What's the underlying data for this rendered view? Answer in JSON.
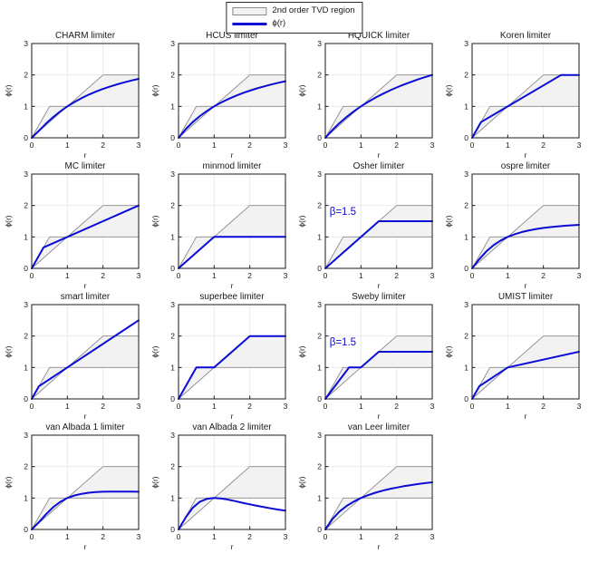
{
  "colors": {
    "curve": "#0b0bd6",
    "annotation": "#0b0bd6",
    "region_fill": "#f2f2f2",
    "region_edge": "#8a8a8a",
    "grid": "#ebebeb",
    "axis": "#1a1a1a",
    "background": "#ffffff"
  },
  "legend": {
    "items": [
      {
        "label": "2nd order TVD region",
        "swatch": "region-patch"
      },
      {
        "label": "ϕ(r)",
        "swatch": "blue-line"
      }
    ]
  },
  "chart_data": {
    "type": "line",
    "layout": "4x4-grid-15-subplots",
    "shared": {
      "xlabel": "r",
      "ylabel": "ϕ(r)",
      "xlim": [
        0,
        3
      ],
      "ylim": [
        0,
        3
      ],
      "xticks": [
        0,
        1,
        2,
        3
      ],
      "yticks": [
        0,
        1,
        2,
        3
      ],
      "grid_lines": {
        "x": [
          1,
          2
        ],
        "y": [
          1,
          2
        ]
      },
      "tvd_region_polygon": [
        [
          0,
          0
        ],
        [
          0.5,
          1
        ],
        [
          1,
          1
        ],
        [
          2,
          2
        ],
        [
          3,
          2
        ],
        [
          3,
          1
        ],
        [
          1,
          1
        ]
      ],
      "region_legend_label": "2nd order TVD region",
      "curve_legend_label": "ϕ(r)"
    },
    "subplots": [
      {
        "title": "CHARM limiter",
        "curve": [
          [
            0,
            0
          ],
          [
            0.2,
            0.222
          ],
          [
            0.4,
            0.449
          ],
          [
            0.6,
            0.656
          ],
          [
            0.8,
            0.84
          ],
          [
            1,
            1
          ],
          [
            1.2,
            1.14
          ],
          [
            1.4,
            1.264
          ],
          [
            1.6,
            1.373
          ],
          [
            1.8,
            1.469
          ],
          [
            2,
            1.556
          ],
          [
            2.2,
            1.633
          ],
          [
            2.4,
            1.702
          ],
          [
            2.6,
            1.765
          ],
          [
            2.8,
            1.823
          ],
          [
            3,
            1.875
          ]
        ]
      },
      {
        "title": "HCUS limiter",
        "curve": [
          [
            0,
            0
          ],
          [
            0.2,
            0.273
          ],
          [
            0.4,
            0.5
          ],
          [
            0.6,
            0.692
          ],
          [
            0.8,
            0.857
          ],
          [
            1,
            1
          ],
          [
            1.2,
            1.125
          ],
          [
            1.4,
            1.235
          ],
          [
            1.6,
            1.333
          ],
          [
            1.8,
            1.421
          ],
          [
            2,
            1.5
          ],
          [
            2.2,
            1.571
          ],
          [
            2.4,
            1.636
          ],
          [
            2.6,
            1.696
          ],
          [
            2.8,
            1.75
          ],
          [
            3,
            1.8
          ]
        ]
      },
      {
        "title": "HQUICK limiter",
        "curve": [
          [
            0,
            0
          ],
          [
            0.2,
            0.25
          ],
          [
            0.4,
            0.471
          ],
          [
            0.6,
            0.667
          ],
          [
            0.8,
            0.842
          ],
          [
            1,
            1
          ],
          [
            1.2,
            1.143
          ],
          [
            1.4,
            1.273
          ],
          [
            1.6,
            1.391
          ],
          [
            1.8,
            1.5
          ],
          [
            2,
            1.6
          ],
          [
            2.2,
            1.692
          ],
          [
            2.4,
            1.778
          ],
          [
            2.6,
            1.857
          ],
          [
            2.8,
            1.931
          ],
          [
            3,
            2
          ]
        ]
      },
      {
        "title": "Koren limiter",
        "curve": [
          [
            0,
            0
          ],
          [
            0.25,
            0.5
          ],
          [
            2.5,
            2
          ],
          [
            3,
            2
          ]
        ]
      },
      {
        "title": "MC limiter",
        "curve": [
          [
            0,
            0
          ],
          [
            0.333,
            0.667
          ],
          [
            3,
            2
          ]
        ]
      },
      {
        "title": "minmod limiter",
        "curve": [
          [
            0,
            0
          ],
          [
            1,
            1
          ],
          [
            3,
            1
          ]
        ]
      },
      {
        "title": "Osher limiter",
        "annotation": {
          "text": "β=1.5",
          "x": 0.12,
          "y": 1.7
        },
        "curve": [
          [
            0,
            0
          ],
          [
            1.5,
            1.5
          ],
          [
            3,
            1.5
          ]
        ]
      },
      {
        "title": "ospre limiter",
        "curve": [
          [
            0,
            0
          ],
          [
            0.2,
            0.29
          ],
          [
            0.4,
            0.538
          ],
          [
            0.6,
            0.735
          ],
          [
            0.8,
            0.885
          ],
          [
            1,
            1
          ],
          [
            1.2,
            1.088
          ],
          [
            1.4,
            1.156
          ],
          [
            1.6,
            1.209
          ],
          [
            1.8,
            1.252
          ],
          [
            2,
            1.286
          ],
          [
            2.2,
            1.313
          ],
          [
            2.4,
            1.336
          ],
          [
            2.6,
            1.355
          ],
          [
            2.8,
            1.371
          ],
          [
            3,
            1.385
          ]
        ]
      },
      {
        "title": "smart limiter",
        "curve": [
          [
            0,
            0
          ],
          [
            0.2,
            0.4
          ],
          [
            3,
            2.5
          ]
        ]
      },
      {
        "title": "superbee limiter",
        "curve": [
          [
            0,
            0
          ],
          [
            0.5,
            1
          ],
          [
            1,
            1
          ],
          [
            2,
            2
          ],
          [
            3,
            2
          ]
        ]
      },
      {
        "title": "Sweby limiter",
        "annotation": {
          "text": "β=1.5",
          "x": 0.12,
          "y": 1.7
        },
        "curve": [
          [
            0,
            0
          ],
          [
            0.667,
            1
          ],
          [
            1,
            1
          ],
          [
            1.5,
            1.5
          ],
          [
            3,
            1.5
          ]
        ]
      },
      {
        "title": "UMIST limiter",
        "curve": [
          [
            0,
            0
          ],
          [
            0.2,
            0.4
          ],
          [
            1,
            1
          ],
          [
            3,
            1.5
          ]
        ]
      },
      {
        "title": "van Albada 1 limiter",
        "curve": [
          [
            0,
            0
          ],
          [
            0.2,
            0.231
          ],
          [
            0.4,
            0.483
          ],
          [
            0.6,
            0.706
          ],
          [
            0.8,
            0.878
          ],
          [
            1,
            1
          ],
          [
            1.2,
            1.082
          ],
          [
            1.4,
            1.135
          ],
          [
            1.6,
            1.169
          ],
          [
            1.8,
            1.189
          ],
          [
            2,
            1.2
          ],
          [
            2.2,
            1.205
          ],
          [
            2.4,
            1.207
          ],
          [
            2.6,
            1.206
          ],
          [
            2.8,
            1.204
          ],
          [
            3,
            1.2
          ]
        ]
      },
      {
        "title": "van Albada 2 limiter",
        "curve": [
          [
            0,
            0
          ],
          [
            0.2,
            0.385
          ],
          [
            0.4,
            0.69
          ],
          [
            0.6,
            0.882
          ],
          [
            0.8,
            0.976
          ],
          [
            1,
            1
          ],
          [
            1.2,
            0.984
          ],
          [
            1.4,
            0.946
          ],
          [
            1.6,
            0.899
          ],
          [
            1.8,
            0.849
          ],
          [
            2,
            0.8
          ],
          [
            2.2,
            0.753
          ],
          [
            2.4,
            0.71
          ],
          [
            2.6,
            0.67
          ],
          [
            2.8,
            0.633
          ],
          [
            3,
            0.6
          ]
        ]
      },
      {
        "title": "van Leer limiter",
        "curve": [
          [
            0,
            0
          ],
          [
            0.2,
            0.333
          ],
          [
            0.4,
            0.571
          ],
          [
            0.6,
            0.75
          ],
          [
            0.8,
            0.889
          ],
          [
            1,
            1
          ],
          [
            1.2,
            1.091
          ],
          [
            1.4,
            1.167
          ],
          [
            1.6,
            1.231
          ],
          [
            1.8,
            1.286
          ],
          [
            2,
            1.333
          ],
          [
            2.2,
            1.375
          ],
          [
            2.4,
            1.412
          ],
          [
            2.6,
            1.444
          ],
          [
            2.8,
            1.474
          ],
          [
            3,
            1.5
          ]
        ]
      }
    ]
  }
}
